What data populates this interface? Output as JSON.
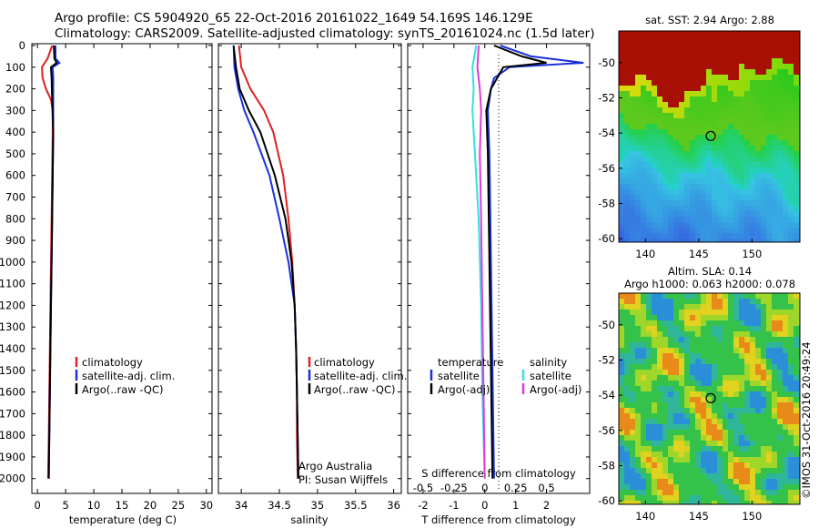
{
  "header": {
    "line1": "Argo profile: CS 5904920_65 22-Oct-2016 20161022_1649 54.169S 146.129E",
    "line2": "Climatology: CARS2009. Satellite-adjusted climatology: synTS_20161024.nc (1.5d later)"
  },
  "colors": {
    "climatology": "#e02020",
    "satellite": "#1a2fd8",
    "argo": "#000000",
    "cyan": "#33e0e6",
    "magenta": "#e03ad8"
  },
  "chart_data": [
    {
      "type": "line",
      "xlabel": "temperature (deg C)",
      "xlim": [
        -1,
        31
      ],
      "ylim": [
        2060,
        0
      ],
      "xticks": [
        0,
        5,
        10,
        15,
        20,
        25,
        30
      ],
      "yticks": [
        0,
        100,
        200,
        300,
        400,
        500,
        600,
        700,
        800,
        900,
        1000,
        1100,
        1200,
        1300,
        1400,
        1500,
        1600,
        1700,
        1800,
        1900,
        2000
      ],
      "legend": [
        "climatology",
        "satellite-adj. clim.",
        "Argo(..raw -QC)"
      ],
      "series": [
        {
          "name": "climatology",
          "depth": [
            0,
            60,
            100,
            150,
            200,
            250,
            300,
            400,
            600,
            800,
            1000,
            1200,
            1400,
            1600,
            1800,
            2000
          ],
          "values": [
            2.6,
            1.8,
            0.8,
            0.9,
            1.5,
            2.4,
            2.7,
            2.7,
            2.6,
            2.5,
            2.4,
            2.3,
            2.2,
            2.1,
            2.0,
            1.9
          ]
        },
        {
          "name": "satellite-adj. clim.",
          "depth": [
            0,
            60,
            80,
            100,
            150,
            250,
            400,
            600,
            800,
            1000,
            1200,
            1400,
            1600,
            1800,
            2000
          ],
          "values": [
            3.2,
            3.2,
            3.9,
            2.7,
            2.8,
            2.8,
            2.8,
            2.7,
            2.6,
            2.5,
            2.4,
            2.3,
            2.2,
            2.1,
            2.0
          ]
        },
        {
          "name": "Argo(..raw -QC)",
          "depth": [
            0,
            60,
            80,
            100,
            150,
            250,
            400,
            600,
            800,
            1000,
            1200,
            1400,
            1600,
            1800,
            2000
          ],
          "values": [
            2.9,
            3.0,
            3.4,
            2.4,
            2.5,
            2.6,
            2.8,
            2.7,
            2.6,
            2.5,
            2.4,
            2.3,
            2.2,
            2.1,
            2.0
          ]
        }
      ]
    },
    {
      "type": "line",
      "xlabel": "salinity",
      "xlim": [
        33.7,
        36.1
      ],
      "ylim": [
        2060,
        0
      ],
      "xticks": [
        34,
        34.5,
        35,
        35.5,
        36
      ],
      "legend": [
        "climatology",
        "satellite-adj. clim.",
        "Argo(..raw -QC)"
      ],
      "annotations": [
        "Argo Australia",
        "PI: Susan Wijffels"
      ],
      "series": [
        {
          "name": "climatology",
          "depth": [
            0,
            100,
            200,
            300,
            400,
            600,
            800,
            1000,
            1200,
            1400,
            1600,
            1800,
            2000
          ],
          "values": [
            33.97,
            34.0,
            34.12,
            34.3,
            34.42,
            34.55,
            34.62,
            34.67,
            34.7,
            34.72,
            34.73,
            34.73,
            34.74
          ]
        },
        {
          "name": "satellite-adj. clim.",
          "depth": [
            0,
            100,
            200,
            300,
            400,
            600,
            800,
            1000,
            1200,
            1400,
            1600,
            1800,
            2000
          ],
          "values": [
            33.9,
            33.91,
            33.96,
            34.04,
            34.16,
            34.37,
            34.5,
            34.62,
            34.7,
            34.72,
            34.73,
            34.74,
            34.75
          ]
        },
        {
          "name": "Argo(..raw -QC)",
          "depth": [
            0,
            100,
            200,
            300,
            400,
            600,
            800,
            1000,
            1200,
            1400,
            1600,
            1800,
            2000
          ],
          "values": [
            33.9,
            33.93,
            33.98,
            34.1,
            34.25,
            34.44,
            34.58,
            34.66,
            34.7,
            34.72,
            34.73,
            34.74,
            34.75
          ]
        }
      ]
    },
    {
      "type": "line",
      "xlabel": "T difference from climatology",
      "xlabel2": "S difference from climatology",
      "xlim": [
        -2.5,
        3.4
      ],
      "ylim": [
        2060,
        0
      ],
      "xticks": [
        -2,
        -1,
        0,
        1,
        2
      ],
      "xticks_s": [
        -0.5,
        -0.25,
        0,
        0.25,
        0.5
      ],
      "legend_headers": [
        "temperature",
        "salinity"
      ],
      "legend": [
        "satellite",
        "Argo(-adj)",
        "satellite",
        "Argo(-adj)"
      ],
      "series": [
        {
          "name": "temperature satellite",
          "depth": [
            0,
            50,
            80,
            100,
            150,
            200,
            300,
            500,
            1000,
            2000
          ],
          "values": [
            0.5,
            1.5,
            3.2,
            0.8,
            0.3,
            0.2,
            0.1,
            0.15,
            0.2,
            0.3
          ]
        },
        {
          "name": "temperature Argo(-adj)",
          "depth": [
            0,
            50,
            80,
            100,
            150,
            200,
            300,
            500,
            1000,
            2000
          ],
          "values": [
            0.3,
            1.2,
            2.0,
            0.6,
            0.4,
            0.2,
            0.05,
            0.1,
            0.15,
            0.25
          ]
        },
        {
          "name": "salinity satellite",
          "depth": [
            0,
            100,
            200,
            300,
            500,
            800,
            1200,
            1600,
            2000
          ],
          "values": [
            -0.07,
            -0.1,
            -0.09,
            -0.1,
            -0.08,
            -0.05,
            -0.03,
            -0.02,
            0.0
          ]
        },
        {
          "name": "salinity Argo(-adj)",
          "depth": [
            0,
            100,
            200,
            300,
            500,
            800,
            1200,
            1600,
            2000
          ],
          "values": [
            -0.05,
            -0.06,
            -0.04,
            -0.03,
            -0.04,
            -0.03,
            -0.02,
            -0.01,
            0.0
          ]
        }
      ]
    },
    {
      "type": "heatmap",
      "title": "sat. SST: 2.94  Argo: 2.88",
      "xticks": [
        140,
        145,
        150
      ],
      "yticks": [
        -50,
        -52,
        -54,
        -56,
        -58,
        -60
      ],
      "xlim": [
        137.5,
        154.5
      ],
      "ylim": [
        -60.2,
        -48.2
      ],
      "marker": {
        "lon": 146.129,
        "lat": -54.169
      }
    },
    {
      "type": "heatmap",
      "title": "Altim. SLA: 0.14",
      "subtitle": "Argo h1000: 0.063 h2000: 0.078",
      "xticks": [
        140,
        145,
        150
      ],
      "yticks": [
        -50,
        -52,
        -54,
        -56,
        -58,
        -60
      ],
      "xlim": [
        137.5,
        154.5
      ],
      "ylim": [
        -60.2,
        -48.2
      ],
      "marker": {
        "lon": 146.129,
        "lat": -54.169
      },
      "credit": "©IMOS 31-Oct-2016 20:49:24"
    }
  ]
}
